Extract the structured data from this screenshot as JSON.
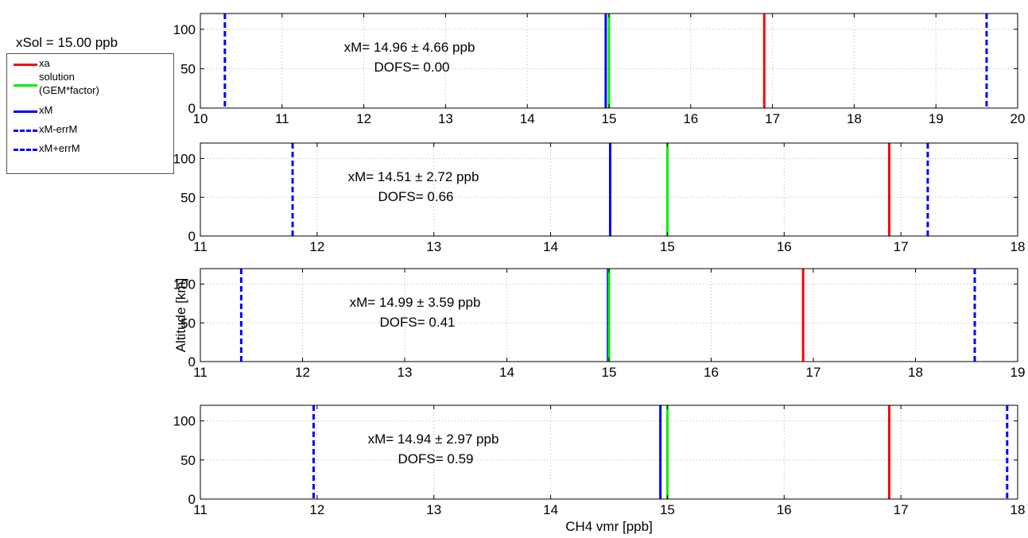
{
  "legend": {
    "title": "xSol = 15.00 ppb",
    "entries": [
      {
        "label": "xa",
        "label2": "",
        "color": "#ff0000",
        "style": "solid"
      },
      {
        "label": "solution",
        "label2": "(GEM*factor)",
        "color": "#00ee00",
        "style": "solid"
      },
      {
        "label": "xM",
        "label2": "",
        "color": "#0000ff",
        "style": "solid"
      },
      {
        "label": "xM-errM",
        "label2": "",
        "color": "#0000ff",
        "style": "dashed"
      },
      {
        "label": "xM+errM",
        "label2": "",
        "color": "#0000ff",
        "style": "dashed"
      }
    ]
  },
  "chart_data": [
    {
      "type": "line",
      "xlim": [
        10,
        20
      ],
      "ylim": [
        0,
        120
      ],
      "xticks": [
        10,
        11,
        12,
        13,
        14,
        15,
        16,
        17,
        18,
        19,
        20
      ],
      "yticks": [
        0,
        50,
        100
      ],
      "grid": true,
      "xlabel": "",
      "ylabel": "",
      "annotation": [
        "xM= 14.96 ± 4.66 ppb",
        "DOFS= 0.00"
      ],
      "lines": {
        "xa": 16.9,
        "solution": 15.0,
        "xM": 14.96,
        "xM_minus_errM": 10.3,
        "xM_plus_errM": 19.62
      }
    },
    {
      "type": "line",
      "xlim": [
        11,
        18
      ],
      "ylim": [
        0,
        120
      ],
      "xticks": [
        11,
        12,
        13,
        14,
        15,
        16,
        17,
        18
      ],
      "yticks": [
        0,
        50,
        100
      ],
      "grid": true,
      "xlabel": "",
      "ylabel": "",
      "annotation": [
        "xM= 14.51 ± 2.72 ppb",
        "DOFS= 0.66"
      ],
      "lines": {
        "xa": 16.9,
        "solution": 15.0,
        "xM": 14.51,
        "xM_minus_errM": 11.79,
        "xM_plus_errM": 17.23
      }
    },
    {
      "type": "line",
      "xlim": [
        11,
        19
      ],
      "ylim": [
        0,
        120
      ],
      "xticks": [
        11,
        12,
        13,
        14,
        15,
        16,
        17,
        18,
        19
      ],
      "yticks": [
        0,
        50,
        100
      ],
      "grid": true,
      "xlabel": "",
      "ylabel": "Altitude [km]",
      "annotation": [
        "xM= 14.99 ± 3.59 ppb",
        "DOFS= 0.41"
      ],
      "lines": {
        "xa": 16.9,
        "solution": 15.0,
        "xM": 14.99,
        "xM_minus_errM": 11.4,
        "xM_plus_errM": 18.58
      }
    },
    {
      "type": "line",
      "xlim": [
        11,
        18
      ],
      "ylim": [
        0,
        120
      ],
      "xticks": [
        11,
        12,
        13,
        14,
        15,
        16,
        17,
        18
      ],
      "yticks": [
        0,
        50,
        100
      ],
      "grid": true,
      "xlabel": "CH4 vmr [ppb]",
      "ylabel": "",
      "annotation": [
        "xM= 14.94 ± 2.97 ppb",
        "DOFS= 0.59"
      ],
      "lines": {
        "xa": 16.9,
        "solution": 15.0,
        "xM": 14.94,
        "xM_minus_errM": 11.97,
        "xM_plus_errM": 17.91
      }
    }
  ]
}
